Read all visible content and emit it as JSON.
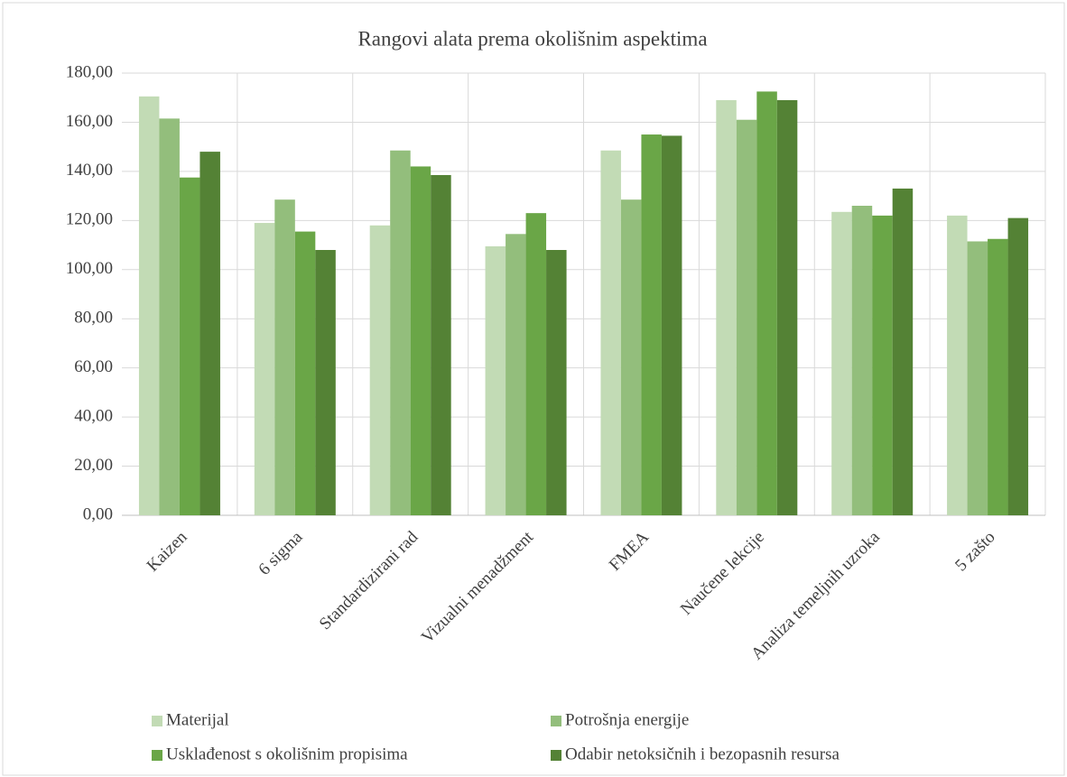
{
  "chart_data": {
    "type": "bar",
    "title": "Rangovi alata prema okolišnim aspektima",
    "categories": [
      "Kaizen",
      "6 sigma",
      "Standardizirani rad",
      "Vizualni menadžment",
      "FMEA",
      "Naučene lekcije",
      "Analiza temeljnih uzroka",
      "5 zašto"
    ],
    "series": [
      {
        "name": "Materijal",
        "color": "#c2dbb5",
        "values": [
          170.5,
          119,
          118,
          109.5,
          148.5,
          169,
          123.5,
          122
        ]
      },
      {
        "name": "Potrošnja energije",
        "color": "#93be7c",
        "values": [
          161.5,
          128.5,
          148.5,
          114.5,
          128.5,
          161,
          126,
          111.5
        ]
      },
      {
        "name": "Usklađenost s okolišnim propisima",
        "color": "#6aa647",
        "values": [
          137.5,
          115.5,
          142,
          123,
          155,
          172.5,
          122,
          112.5
        ]
      },
      {
        "name": "Odabir netoksičnih i bezopasnih resursa",
        "color": "#548235",
        "values": [
          148,
          108,
          138.5,
          108,
          154.5,
          169,
          133,
          121
        ]
      }
    ],
    "ylim": [
      0,
      180
    ],
    "yticks": [
      {
        "value": 0,
        "label": "0,00"
      },
      {
        "value": 20,
        "label": "20,00"
      },
      {
        "value": 40,
        "label": "40,00"
      },
      {
        "value": 60,
        "label": "60,00"
      },
      {
        "value": 80,
        "label": "80,00"
      },
      {
        "value": 100,
        "label": "100,00"
      },
      {
        "value": 120,
        "label": "120,00"
      },
      {
        "value": 140,
        "label": "140,00"
      },
      {
        "value": 160,
        "label": "160,00"
      },
      {
        "value": 180,
        "label": "180,00"
      }
    ],
    "grid": true,
    "legend": "bottom"
  }
}
